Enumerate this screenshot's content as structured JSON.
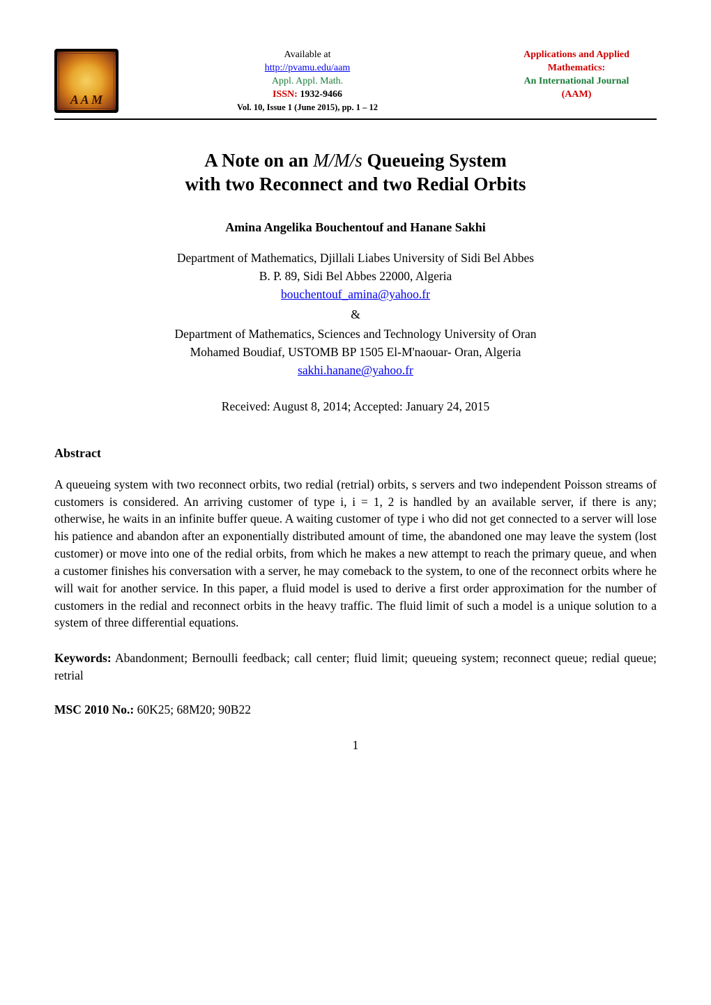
{
  "header": {
    "mid": {
      "available_at": "Available at",
      "url": "http://pvamu.edu/aam",
      "appl": "Appl. Appl. Math.",
      "issn_label": "ISSN:",
      "issn_num": "1932-9466",
      "vol_line": "Vol. 10,  Issue 1  (June 2015),  pp. 1 – 12"
    },
    "right": {
      "line1": "Applications and Applied",
      "line2": "Mathematics:",
      "line3": "An International Journal",
      "line4": "(AAM)"
    },
    "logo_text": "A A M"
  },
  "title_line1": "A Note on an ",
  "title_mms": "M/M/s",
  "title_line1b": " Queueing System",
  "title_line2": "with two Reconnect and two Redial Orbits",
  "authors": "Amina Angelika Bouchentouf and Hanane Sakhi",
  "affil": {
    "dept1": "Department of Mathematics, Djillali Liabes University of Sidi Bel Abbes",
    "addr1": "B. P. 89, Sidi Bel Abbes 22000, Algeria",
    "email1": "bouchentouf_amina@yahoo.fr",
    "amp": "&",
    "dept2": "Department of Mathematics, Sciences and Technology University of Oran",
    "addr2": "Mohamed Boudiaf, USTOMB BP 1505 El-M'naouar- Oran, Algeria",
    "email2": "sakhi.hanane@yahoo.fr"
  },
  "dates": "Received: August 8, 2014; Accepted: January 24, 2015",
  "abstract_heading": "Abstract",
  "abstract_body": "A queueing system with two reconnect orbits, two redial (retrial) orbits, s servers and two independent Poisson streams of customers is considered. An arriving customer of type i, i = 1, 2 is handled by an available server, if there is any; otherwise, he waits in an infinite buffer queue. A waiting customer of type i who did not get connected to a server will lose his patience and abandon after an exponentially distributed amount of time, the abandoned one may leave the system (lost customer) or move into one of the redial orbits, from which he makes a new attempt to reach the primary queue, and when a customer finishes his conversation with a server, he may comeback to the system, to one of the reconnect orbits where he will wait for another service. In this paper, a fluid model is used to derive a first order approximation for the number of customers in the redial and reconnect orbits in the heavy traffic. The fluid limit of such a model is a unique solution to a system of three differential equations.",
  "keywords_label": "Keywords:",
  "keywords_body": " Abandonment; Bernoulli feedback; call center; fluid limit; queueing system; reconnect queue; redial queue; retrial",
  "msc_label": "MSC 2010 No.:",
  "msc_body": " 60K25; 68M20; 90B22",
  "page_num": "1",
  "colors": {
    "link_blue": "#0000ee",
    "green": "#1a7e3a",
    "red": "#d00000",
    "text": "#000000",
    "background": "#ffffff"
  },
  "typography": {
    "body_fontsize_pt": 12,
    "title_fontsize_pt": 18,
    "font_family": "Times New Roman"
  }
}
